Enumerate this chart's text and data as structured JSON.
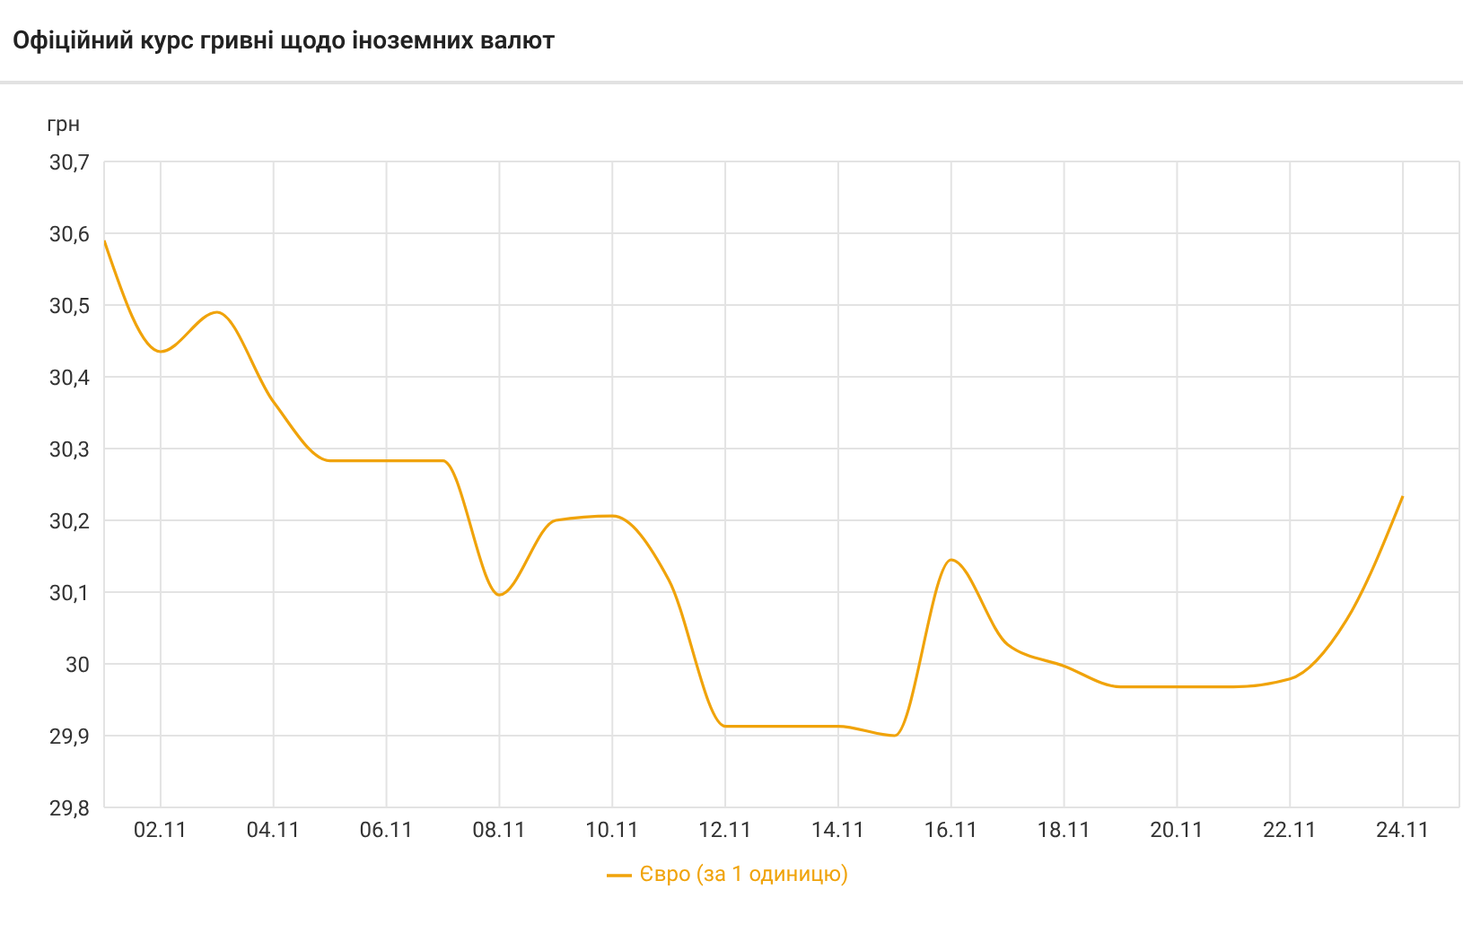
{
  "chart_data": {
    "type": "line",
    "title": "Офіційний курс гривні щодо іноземних валют",
    "ylabel": "грн",
    "x": [
      "--11-01",
      "--11-02",
      "--11-03",
      "--11-04",
      "--11-05",
      "--11-06",
      "--11-07",
      "--11-08",
      "--11-09",
      "--11-10",
      "--11-11",
      "--11-12",
      "--11-13",
      "--11-14",
      "--11-15",
      "--11-16",
      "--11-17",
      "--11-18",
      "--11-19",
      "--11-20",
      "--11-21",
      "--11-22",
      "--11-23",
      "--11-24"
    ],
    "series": [
      {
        "name": "Євро (за 1 одиницю)",
        "color": "#f0a30a",
        "values": [
          30.59,
          30.435,
          30.49,
          30.365,
          30.283,
          30.283,
          30.283,
          30.096,
          30.2,
          30.206,
          30.117,
          29.913,
          29.913,
          29.913,
          29.9,
          30.145,
          30.027,
          29.997,
          29.968,
          29.968,
          29.968,
          29.979,
          30.061,
          30.234
        ]
      }
    ],
    "xlim": [
      "--11-01",
      "--11-25"
    ],
    "xticks": [
      {
        "value": "--11-02",
        "label": "02.11"
      },
      {
        "value": "--11-04",
        "label": "04.11"
      },
      {
        "value": "--11-06",
        "label": "06.11"
      },
      {
        "value": "--11-08",
        "label": "08.11"
      },
      {
        "value": "--11-10",
        "label": "10.11"
      },
      {
        "value": "--11-12",
        "label": "12.11"
      },
      {
        "value": "--11-14",
        "label": "14.11"
      },
      {
        "value": "--11-16",
        "label": "16.11"
      },
      {
        "value": "--11-18",
        "label": "18.11"
      },
      {
        "value": "--11-20",
        "label": "20.11"
      },
      {
        "value": "--11-22",
        "label": "22.11"
      },
      {
        "value": "--11-24",
        "label": "24.11"
      }
    ],
    "ylim": [
      29.8,
      30.7
    ],
    "yticks": [
      {
        "value": 29.8,
        "label": "29,8"
      },
      {
        "value": 29.9,
        "label": "29,9"
      },
      30,
      {
        "value": 30.1,
        "label": "30,1"
      },
      {
        "value": 30.2,
        "label": "30,2"
      },
      {
        "value": 30.3,
        "label": "30,3"
      },
      {
        "value": 30.4,
        "label": "30,4"
      },
      {
        "value": 30.5,
        "label": "30,5"
      },
      {
        "value": 30.6,
        "label": "30,6"
      },
      {
        "value": 30.7,
        "label": "30,7"
      }
    ],
    "grid": true,
    "legend": "bottom",
    "marker": "none"
  }
}
